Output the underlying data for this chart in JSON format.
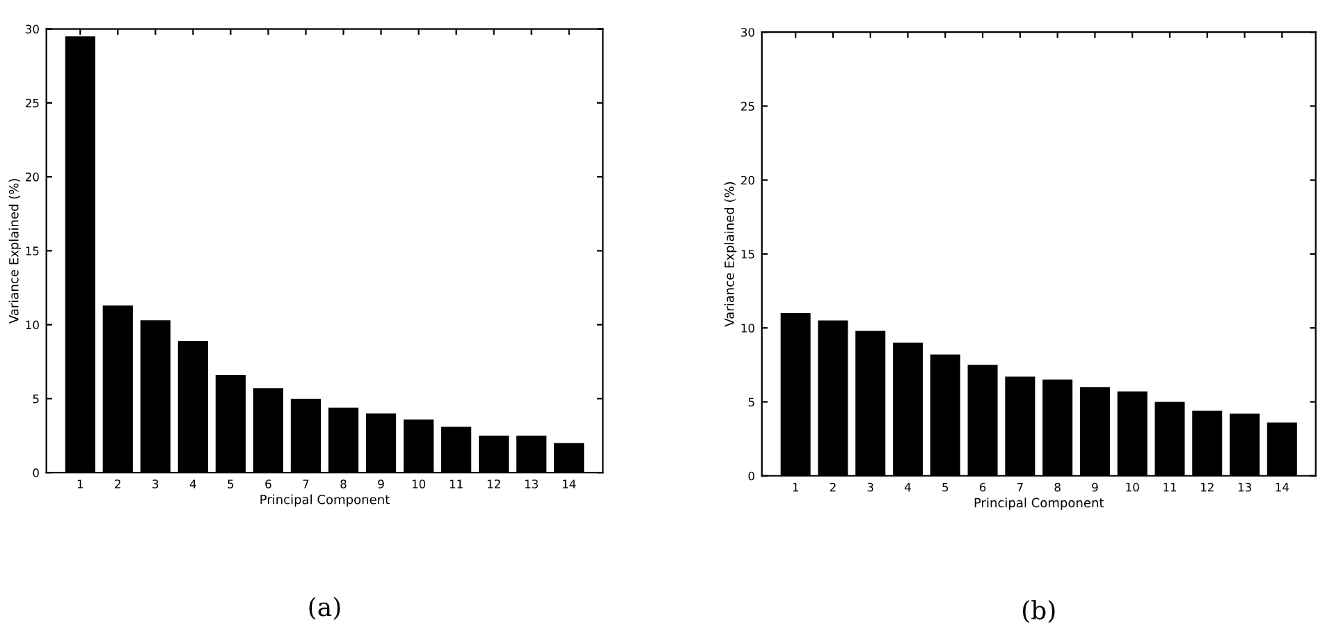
{
  "chart_data": [
    {
      "type": "bar",
      "xlabel": "Principal Component",
      "ylabel": "Variance Explained (%)",
      "annotations": [
        "(a)"
      ],
      "categories": [
        "1",
        "2",
        "3",
        "4",
        "5",
        "6",
        "7",
        "8",
        "9",
        "10",
        "11",
        "12",
        "13",
        "14"
      ],
      "values": [
        29.5,
        11.3,
        10.3,
        8.9,
        6.6,
        5.7,
        5.0,
        4.4,
        4.0,
        3.6,
        3.1,
        2.5,
        2.5,
        2.0
      ],
      "color": "#000000",
      "ylim": [
        0,
        30
      ],
      "yticks": [
        0,
        5,
        10,
        15,
        20,
        25,
        30
      ],
      "grid": false
    },
    {
      "type": "bar",
      "xlabel": "Principal Component",
      "ylabel": "Variance Explained (%)",
      "annotations": [
        "(b)"
      ],
      "categories": [
        "1",
        "2",
        "3",
        "4",
        "5",
        "6",
        "7",
        "8",
        "9",
        "10",
        "11",
        "12",
        "13",
        "14"
      ],
      "values": [
        11.0,
        10.5,
        9.8,
        9.0,
        8.2,
        7.5,
        6.7,
        6.5,
        6.0,
        5.7,
        5.0,
        4.4,
        4.2,
        3.6
      ],
      "color": "#000000",
      "ylim": [
        0,
        30
      ],
      "yticks": [
        0,
        5,
        10,
        15,
        20,
        25,
        30
      ],
      "grid": false
    }
  ]
}
